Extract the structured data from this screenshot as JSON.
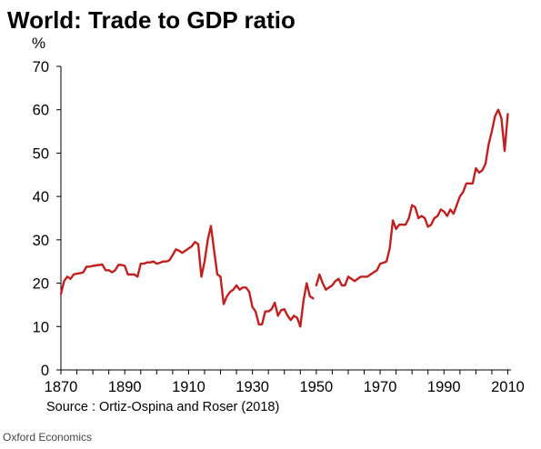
{
  "credit": "Oxford Economics",
  "chart_data": {
    "type": "line",
    "title": "World: Trade to GDP ratio",
    "unit_label": "%",
    "source": "Source : Ortiz-Ospina and Roser (2018)",
    "xlabel": "",
    "ylabel": "",
    "xlim": [
      1870,
      2011
    ],
    "ylim": [
      0,
      70
    ],
    "y_ticks": [
      0,
      10,
      20,
      30,
      40,
      50,
      60,
      70
    ],
    "x_ticks": [
      1870,
      1890,
      1910,
      1930,
      1950,
      1970,
      1990,
      2010
    ],
    "grid": false,
    "legend": "none",
    "line_color": "#c0201f",
    "series": [
      {
        "segments": [
          {
            "x": [
              1870,
              1871,
              1872,
              1873,
              1874,
              1875,
              1876,
              1877,
              1878,
              1879,
              1880,
              1881,
              1882,
              1883,
              1884,
              1885,
              1886,
              1887,
              1888,
              1889,
              1890,
              1891,
              1892,
              1893,
              1894,
              1895,
              1896,
              1897,
              1898,
              1899,
              1900,
              1901,
              1902,
              1903,
              1904,
              1905,
              1906,
              1907,
              1908,
              1909,
              1910,
              1911,
              1912,
              1913,
              1914,
              1915,
              1916,
              1917,
              1918,
              1919,
              1920,
              1921,
              1922,
              1923,
              1924,
              1925,
              1926,
              1927,
              1928,
              1929,
              1930,
              1931,
              1932,
              1933,
              1934,
              1935,
              1936,
              1937,
              1938,
              1939,
              1940,
              1941,
              1942,
              1943,
              1944,
              1945,
              1946,
              1947,
              1948,
              1949
            ],
            "y": [
              17.5,
              20.5,
              21.5,
              21,
              22,
              22.2,
              22.3,
              22.5,
              23.8,
              23.8,
              24,
              24.1,
              24.2,
              24.3,
              23,
              23,
              22.5,
              23,
              24.2,
              24.2,
              24,
              22,
              22,
              22,
              21.5,
              24.5,
              24.5,
              24.8,
              24.8,
              25,
              24.5,
              24.7,
              25,
              25,
              25.3,
              26.5,
              27.8,
              27.5,
              27,
              27.5,
              28,
              28.5,
              29.5,
              29,
              21.5,
              25,
              30,
              33.2,
              27.5,
              22,
              21.5,
              15.2,
              17,
              18,
              18.5,
              19.5,
              18.5,
              19,
              19,
              18,
              14.5,
              13.5,
              10.5,
              10.5,
              13.5,
              13.5,
              14,
              15.5,
              12.5,
              13.8,
              14,
              12.5,
              11.5,
              12.5,
              12,
              10,
              16,
              20,
              17,
              16.5
            ]
          },
          {
            "x": [
              1950,
              1951,
              1952,
              1953,
              1954,
              1955,
              1956,
              1957,
              1958,
              1959,
              1960,
              1961,
              1962,
              1963,
              1964,
              1965,
              1966,
              1967,
              1968,
              1969,
              1970,
              1971,
              1972,
              1973,
              1974,
              1975,
              1976,
              1977,
              1978,
              1979,
              1980,
              1981,
              1982,
              1983,
              1984,
              1985,
              1986,
              1987,
              1988,
              1989,
              1990,
              1991,
              1992,
              1993,
              1994,
              1995,
              1996,
              1997,
              1998,
              1999,
              2000,
              2001,
              2002,
              2003,
              2004,
              2005,
              2006,
              2007,
              2008,
              2009,
              2010
            ],
            "y": [
              19.5,
              22,
              20,
              18.5,
              19,
              19.5,
              20.5,
              21,
              19.5,
              19.5,
              21.5,
              21,
              20.5,
              21,
              21.5,
              21.5,
              21.5,
              22,
              22.5,
              23,
              24.5,
              24.7,
              25,
              28,
              34.5,
              32.5,
              33.5,
              33.5,
              33.5,
              35,
              38,
              37.5,
              35,
              35.5,
              35,
              33,
              33.5,
              35,
              35.5,
              37,
              36.5,
              35.5,
              37,
              36,
              38,
              40,
              41,
              43,
              43,
              43,
              46.5,
              45.5,
              46,
              47.5,
              52,
              55,
              58.5,
              60,
              58,
              50.5,
              59
            ]
          }
        ]
      }
    ]
  }
}
